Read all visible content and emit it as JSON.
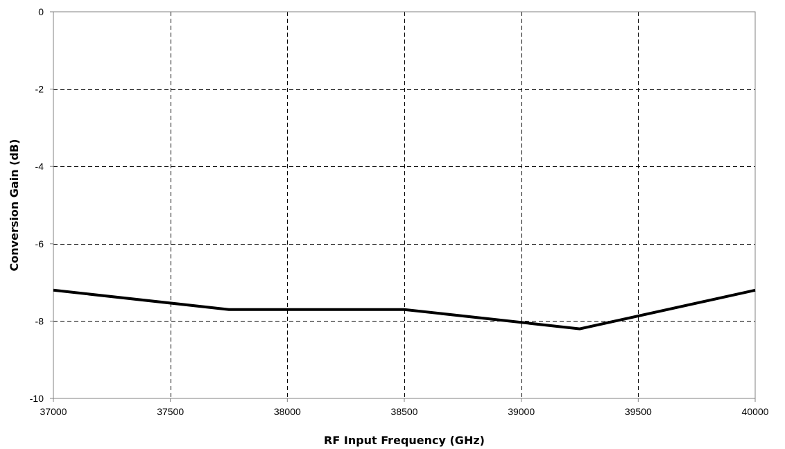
{
  "chart_data": {
    "type": "line",
    "title": "",
    "xlabel": "RF Input Frequency (GHz)",
    "ylabel": "Conversion Gain (dB)",
    "xlim": [
      37000,
      40000
    ],
    "ylim": [
      -10,
      0
    ],
    "x_ticks": [
      37000,
      37500,
      38000,
      38500,
      39000,
      39500,
      40000
    ],
    "y_ticks": [
      0,
      -2,
      -4,
      -6,
      -8,
      -10
    ],
    "grid": true,
    "grid_style": "dashed",
    "legend": "none",
    "series": [
      {
        "color": "#000000",
        "x": [
          37000,
          37750,
          38500,
          39250,
          40000
        ],
        "y": [
          -7.2,
          -7.7,
          -7.7,
          -8.2,
          -7.2
        ]
      }
    ]
  }
}
